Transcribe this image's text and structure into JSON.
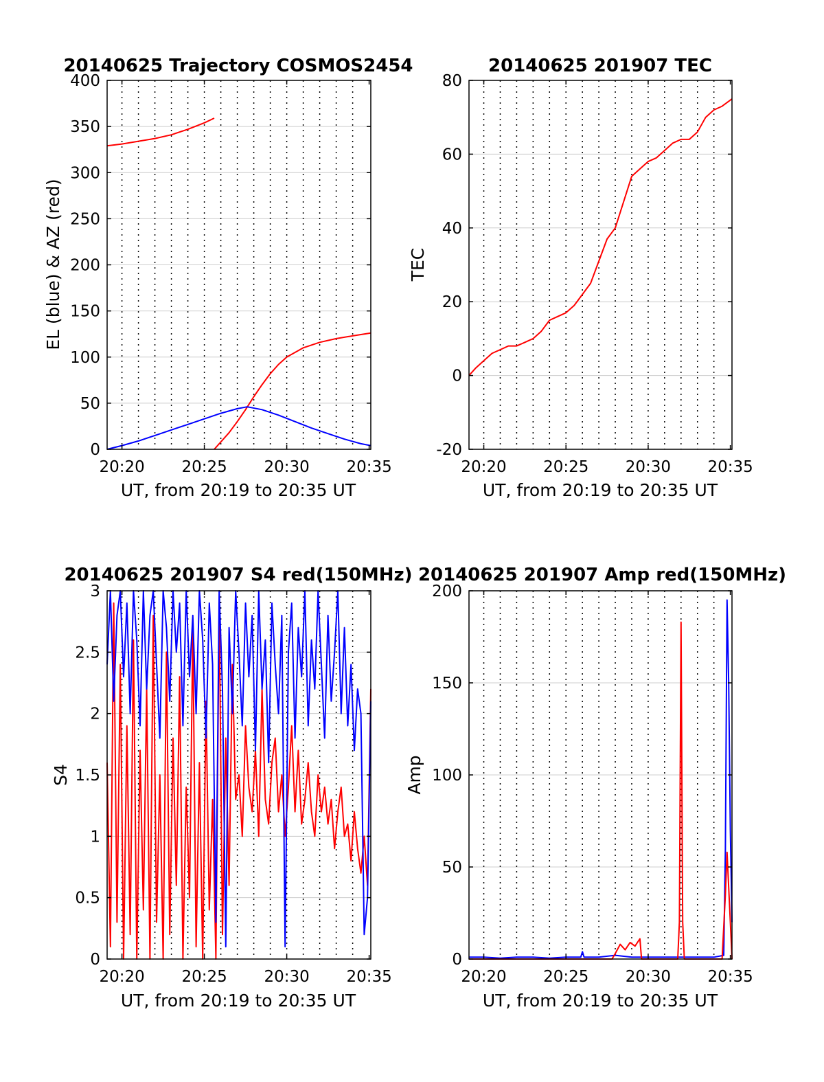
{
  "colors": {
    "el": "#0000ff",
    "az": "#ff0000",
    "grid": "#cccccc",
    "dotted": "#000000"
  },
  "chart_data": [
    {
      "id": "trajectory",
      "type": "line",
      "title": "20140625 Trajectory COSMOS2454",
      "xlabel": "UT, from 20:19 to 20:35 UT",
      "ylabel": "EL (blue) & AZ (red)",
      "xlim": [
        19.1,
        35.1
      ],
      "ylim": [
        0,
        400
      ],
      "xticks": [
        20,
        25,
        30,
        35
      ],
      "xtick_labels": [
        "20:20",
        "20:25",
        "20:30",
        "20:35"
      ],
      "yticks": [
        0,
        50,
        100,
        150,
        200,
        250,
        300,
        350,
        400
      ],
      "ytick_labels": [
        "0",
        "50",
        "100",
        "150",
        "200",
        "250",
        "300",
        "350",
        "400"
      ],
      "dotted_x": [
        20,
        21,
        22,
        23,
        24,
        25,
        26,
        27,
        28,
        29,
        30,
        31,
        32,
        33,
        34
      ],
      "grid": true,
      "series": [
        {
          "color": "#ff0000",
          "x": [
            19.1,
            20,
            21,
            22,
            23,
            24,
            25,
            25.6
          ],
          "y": [
            329,
            331,
            334,
            337,
            341,
            347,
            354,
            359
          ]
        },
        {
          "color": "#ff0000",
          "x": [
            25.6,
            26,
            26.5,
            27,
            27.5,
            28,
            28.5,
            29,
            29.5,
            30,
            31,
            32,
            33,
            34,
            35.1
          ],
          "y": [
            0,
            8,
            18,
            30,
            43,
            57,
            70,
            82,
            92,
            100,
            110,
            116,
            120,
            123,
            126
          ]
        },
        {
          "color": "#0000ff",
          "x": [
            19.1,
            20,
            21,
            22,
            23,
            24,
            25,
            26,
            27,
            27.6,
            28.5,
            29.5,
            30.5,
            31.5,
            32.5,
            33.5,
            34.5,
            35.1
          ],
          "y": [
            0,
            4,
            9,
            15,
            21,
            27,
            33,
            39,
            44,
            46,
            43,
            37,
            30,
            23,
            17,
            11,
            6,
            4
          ]
        }
      ]
    },
    {
      "id": "tec",
      "type": "line",
      "title": "20140625 201907 TEC",
      "xlabel": "UT, from 20:19 to 20:35 UT",
      "ylabel": "TEC",
      "xlim": [
        19.1,
        35.1
      ],
      "ylim": [
        -20,
        80
      ],
      "xticks": [
        20,
        25,
        30,
        35
      ],
      "xtick_labels": [
        "20:20",
        "20:25",
        "20:30",
        "20:35"
      ],
      "yticks": [
        -20,
        0,
        20,
        40,
        60,
        80
      ],
      "ytick_labels": [
        "-20",
        "0",
        "20",
        "40",
        "60",
        "80"
      ],
      "dotted_x": [
        20,
        21,
        22,
        23,
        24,
        25,
        26,
        27,
        28,
        29,
        30,
        31,
        32,
        33,
        34
      ],
      "grid": true,
      "series": [
        {
          "color": "#ff0000",
          "x": [
            19.1,
            19.5,
            20,
            20.5,
            21,
            21.5,
            22,
            22.5,
            23,
            23.5,
            24,
            24.5,
            25,
            25.5,
            26,
            26.5,
            27,
            27.5,
            28,
            28.5,
            29,
            29.5,
            30,
            30.5,
            31,
            31.5,
            32,
            32.5,
            33,
            33.5,
            34,
            34.5,
            35.1
          ],
          "y": [
            0,
            2,
            4,
            6,
            7,
            8,
            8,
            9,
            10,
            12,
            15,
            16,
            17,
            19,
            22,
            25,
            31,
            37,
            40,
            47,
            54,
            56,
            58,
            59,
            61,
            63,
            64,
            64,
            66,
            70,
            72,
            73,
            75
          ]
        }
      ]
    },
    {
      "id": "s4",
      "type": "line",
      "title": "20140625 201907 S4 red(150MHz)",
      "xlabel": "UT, from 20:19 to 20:35 UT",
      "ylabel": "S4",
      "xlim": [
        19.1,
        35.1
      ],
      "ylim": [
        0,
        3
      ],
      "xticks": [
        20,
        25,
        30,
        35
      ],
      "xtick_labels": [
        "20:20",
        "20:25",
        "20:30",
        "20:35"
      ],
      "yticks": [
        0,
        0.5,
        1,
        1.5,
        2,
        2.5,
        3
      ],
      "ytick_labels": [
        "0",
        "0.5",
        "1",
        "1.5",
        "2",
        "2.5",
        "3"
      ],
      "dotted_x": [
        20,
        21,
        22,
        23,
        24,
        25,
        26,
        27,
        28,
        29,
        30,
        31,
        32,
        33,
        34
      ],
      "grid": true,
      "series": [
        {
          "color": "#ff0000",
          "x": [
            19.1,
            19.3,
            19.5,
            19.7,
            19.9,
            20.1,
            20.3,
            20.5,
            20.7,
            20.9,
            21.1,
            21.3,
            21.5,
            21.7,
            21.9,
            22.1,
            22.3,
            22.5,
            22.7,
            22.9,
            23.1,
            23.3,
            23.5,
            23.7,
            23.9,
            24.1,
            24.3,
            24.5,
            24.7,
            24.9,
            25.1,
            25.3,
            25.5,
            25.7,
            25.9,
            26.1,
            26.3,
            26.5,
            26.7,
            26.9,
            27.1,
            27.3,
            27.5,
            27.7,
            27.9,
            28.1,
            28.3,
            28.5,
            28.7,
            28.9,
            29.1,
            29.3,
            29.5,
            29.7,
            29.9,
            30.1,
            30.3,
            30.5,
            30.7,
            30.9,
            31.1,
            31.3,
            31.5,
            31.7,
            31.9,
            32.1,
            32.3,
            32.5,
            32.7,
            32.9,
            33.1,
            33.3,
            33.5,
            33.7,
            33.9,
            34.1,
            34.3,
            34.5,
            34.7,
            34.9,
            35.1
          ],
          "y": [
            1.6,
            0.1,
            2.9,
            0.3,
            2.4,
            0,
            1.9,
            0.2,
            2.6,
            0,
            1.7,
            0.4,
            2.2,
            0,
            2.8,
            0.3,
            1.5,
            0,
            2.5,
            0.2,
            1.8,
            0.6,
            2.3,
            0,
            1.4,
            0.5,
            2.7,
            0.1,
            1.6,
            0,
            2.1,
            0.4,
            1.3,
            0,
            2.9,
            0.2,
            1.8,
            0.6,
            2.4,
            1.3,
            1.5,
            1.0,
            1.9,
            1.4,
            1.2,
            1.7,
            1.0,
            2.2,
            1.3,
            1.1,
            1.6,
            1.8,
            1.2,
            1.5,
            1.0,
            1.4,
            1.9,
            1.2,
            1.7,
            1.1,
            1.3,
            1.6,
            1.2,
            1.0,
            1.5,
            1.2,
            1.4,
            1.1,
            1.3,
            0.9,
            1.2,
            1.4,
            1.0,
            1.1,
            0.8,
            1.2,
            0.9,
            0.7,
            1.0,
            0.6,
            2.2
          ]
        },
        {
          "color": "#0000ff",
          "x": [
            19.1,
            19.3,
            19.5,
            19.7,
            19.9,
            20.1,
            20.3,
            20.5,
            20.7,
            20.9,
            21.1,
            21.3,
            21.5,
            21.7,
            21.9,
            22.1,
            22.3,
            22.5,
            22.7,
            22.9,
            23.1,
            23.3,
            23.5,
            23.7,
            23.9,
            24.1,
            24.3,
            24.5,
            24.7,
            24.9,
            25.1,
            25.3,
            25.5,
            25.7,
            25.9,
            26.1,
            26.3,
            26.5,
            26.7,
            26.9,
            27.1,
            27.3,
            27.5,
            27.7,
            27.9,
            28.1,
            28.3,
            28.5,
            28.7,
            28.9,
            29.1,
            29.3,
            29.5,
            29.7,
            29.9,
            30.1,
            30.3,
            30.5,
            30.7,
            30.9,
            31.1,
            31.3,
            31.5,
            31.7,
            31.9,
            32.1,
            32.3,
            32.5,
            32.7,
            32.9,
            33.1,
            33.3,
            33.5,
            33.7,
            33.9,
            34.1,
            34.3,
            34.5,
            34.7,
            34.9,
            35.1
          ],
          "y": [
            2.4,
            3.0,
            2.1,
            2.8,
            3.0,
            2.3,
            2.9,
            2.0,
            3.0,
            2.6,
            1.9,
            3.0,
            2.2,
            2.8,
            3.0,
            2.4,
            1.8,
            3.0,
            2.7,
            2.1,
            3.0,
            2.5,
            2.9,
            1.9,
            3.0,
            2.3,
            2.8,
            2.0,
            3.0,
            2.6,
            1.8,
            2.9,
            2.4,
            0.3,
            3.0,
            2.2,
            0.1,
            2.7,
            2.0,
            3.0,
            2.5,
            1.9,
            2.9,
            2.3,
            2.8,
            1.7,
            3.0,
            2.2,
            2.6,
            1.6,
            2.9,
            2.4,
            2.0,
            2.8,
            0.1,
            2.5,
            2.9,
            1.8,
            2.7,
            2.3,
            3.0,
            1.9,
            2.6,
            2.2,
            3.0,
            2.4,
            1.8,
            2.8,
            2.1,
            2.5,
            3.0,
            2.0,
            2.7,
            1.9,
            2.4,
            1.7,
            2.2,
            2.0,
            0.2,
            0.5,
            2.1
          ]
        }
      ]
    },
    {
      "id": "amp",
      "type": "line",
      "title": "20140625 201907 Amp red(150MHz)",
      "xlabel": "UT, from 20:19 to 20:35 UT",
      "ylabel": "Amp",
      "xlim": [
        19.1,
        35.1
      ],
      "ylim": [
        0,
        200
      ],
      "xticks": [
        20,
        25,
        30,
        35
      ],
      "xtick_labels": [
        "20:20",
        "20:25",
        "20:30",
        "20:35"
      ],
      "yticks": [
        0,
        50,
        100,
        150,
        200
      ],
      "ytick_labels": [
        "0",
        "50",
        "100",
        "150",
        "200"
      ],
      "dotted_x": [
        20,
        21,
        22,
        23,
        24,
        25,
        26,
        27,
        28,
        29,
        30,
        31,
        32,
        33,
        34
      ],
      "grid": true,
      "series": [
        {
          "color": "#0000ff",
          "x": [
            19.1,
            20,
            21,
            22,
            23,
            24,
            25,
            25.9,
            26,
            26.1,
            27,
            28,
            29,
            30,
            31,
            32,
            33,
            34,
            34.6,
            34.7,
            34.8,
            34.9,
            35.0,
            35.1
          ],
          "y": [
            1,
            1,
            0.5,
            1,
            1,
            0.5,
            1,
            1,
            4,
            1,
            1,
            2,
            1,
            1,
            1,
            1,
            1,
            1,
            2,
            60,
            195,
            150,
            70,
            20
          ]
        },
        {
          "color": "#ff0000",
          "x": [
            19.1,
            27.8,
            28.0,
            28.3,
            28.6,
            28.9,
            29.2,
            29.5,
            29.6,
            31.8,
            31.9,
            32.0,
            32.1,
            32.2,
            34.5,
            34.7,
            34.8,
            35.0,
            35.1
          ],
          "y": [
            0,
            0,
            3,
            8,
            5,
            9,
            7,
            11,
            0,
            0,
            20,
            183,
            20,
            0,
            0,
            35,
            58,
            20,
            0
          ]
        }
      ]
    }
  ]
}
